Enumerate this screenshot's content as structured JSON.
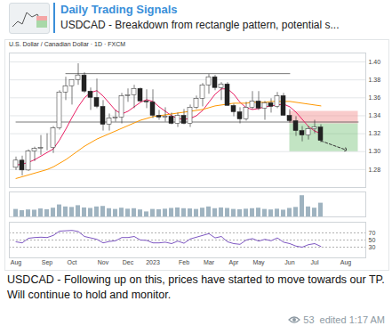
{
  "header": {
    "channel": "Daily Trading Signals",
    "preview": "USDCAD - Breakdown from rectangle pattern, potential s..."
  },
  "chart_data": [
    {
      "type": "candlestick",
      "title": "U.S. Dollar / Canadian Dollar · 1D · FXCM",
      "categories": [
        "Aug",
        null,
        null,
        null,
        null,
        "Sep",
        null,
        null,
        null,
        "Oct",
        null,
        null,
        null,
        null,
        "Nov",
        null,
        null,
        null,
        "Dec",
        null,
        null,
        null,
        "2023",
        null,
        null,
        null,
        null,
        "Feb",
        null,
        null,
        null,
        "Mar",
        null,
        null,
        null,
        "Apr",
        null,
        null,
        null,
        "May",
        null,
        null,
        null,
        null,
        "Jun",
        null,
        null,
        null,
        "Jul",
        null,
        null,
        null,
        null,
        "Aug",
        null,
        null
      ],
      "open": [
        1.282,
        1.29,
        1.279,
        1.3,
        1.303,
        1.304,
        1.304,
        1.326,
        1.366,
        1.373,
        1.38,
        1.385,
        1.367,
        1.36,
        1.35,
        1.33,
        1.337,
        1.338,
        1.362,
        1.363,
        1.37,
        1.356,
        1.355,
        1.34,
        1.338,
        1.339,
        1.331,
        1.34,
        1.331,
        1.349,
        1.359,
        1.374,
        1.383,
        1.371,
        1.375,
        1.351,
        1.344,
        1.336,
        1.349,
        1.356,
        1.348,
        1.354,
        1.35,
        1.362,
        1.34,
        1.334,
        1.323,
        1.318,
        1.325,
        1.327,
        null,
        null,
        null,
        null,
        null,
        null
      ],
      "high": [
        1.294,
        1.295,
        1.302,
        1.305,
        1.318,
        1.32,
        1.328,
        1.368,
        1.383,
        1.38,
        1.398,
        1.388,
        1.371,
        1.381,
        1.357,
        1.342,
        1.346,
        1.365,
        1.37,
        1.374,
        1.371,
        1.369,
        1.369,
        1.346,
        1.349,
        1.343,
        1.343,
        1.347,
        1.352,
        1.362,
        1.376,
        1.386,
        1.385,
        1.377,
        1.377,
        1.353,
        1.349,
        1.355,
        1.367,
        1.367,
        1.356,
        1.359,
        1.366,
        1.365,
        1.347,
        1.339,
        1.328,
        1.328,
        1.335,
        1.33,
        null,
        null,
        null,
        null,
        null,
        null
      ],
      "low": [
        1.279,
        1.273,
        1.278,
        1.289,
        1.296,
        1.301,
        1.298,
        1.324,
        1.357,
        1.352,
        1.374,
        1.365,
        1.346,
        1.348,
        1.323,
        1.323,
        1.333,
        1.331,
        1.355,
        1.348,
        1.355,
        1.348,
        1.337,
        1.335,
        1.333,
        1.33,
        1.327,
        1.33,
        1.327,
        1.347,
        1.35,
        1.364,
        1.368,
        1.357,
        1.351,
        1.339,
        1.331,
        1.334,
        1.347,
        1.346,
        1.335,
        1.343,
        1.348,
        1.34,
        1.332,
        1.317,
        1.311,
        1.313,
        1.32,
        1.31,
        null,
        null,
        null,
        null,
        null,
        null
      ],
      "close": [
        1.29,
        1.279,
        1.3,
        1.303,
        1.304,
        1.304,
        1.326,
        1.366,
        1.373,
        1.38,
        1.385,
        1.367,
        1.36,
        1.35,
        1.33,
        1.337,
        1.338,
        1.362,
        1.363,
        1.37,
        1.356,
        1.355,
        1.34,
        1.338,
        1.339,
        1.331,
        1.34,
        1.331,
        1.349,
        1.359,
        1.374,
        1.383,
        1.371,
        1.375,
        1.351,
        1.344,
        1.336,
        1.349,
        1.356,
        1.348,
        1.354,
        1.35,
        1.362,
        1.34,
        1.334,
        1.323,
        1.318,
        1.325,
        1.327,
        1.312,
        null,
        null,
        null,
        null,
        null,
        null
      ],
      "moving_averages": [
        {
          "color": "#e91e63",
          "values": [
            1.285,
            1.286,
            1.288,
            1.291,
            1.295,
            1.299,
            1.303,
            1.313,
            1.325,
            1.338,
            1.35,
            1.36,
            1.366,
            1.368,
            1.362,
            1.354,
            1.346,
            1.342,
            1.345,
            1.35,
            1.355,
            1.358,
            1.356,
            1.35,
            1.345,
            1.34,
            1.337,
            1.336,
            1.337,
            1.34,
            1.346,
            1.355,
            1.364,
            1.37,
            1.37,
            1.364,
            1.355,
            1.349,
            1.347,
            1.348,
            1.35,
            1.351,
            1.352,
            1.353,
            1.35,
            1.344,
            1.336,
            1.328,
            1.323,
            1.32,
            null,
            null,
            null,
            null,
            null,
            null
          ]
        },
        {
          "color": "#ff9800",
          "values": [
            1.27,
            1.272,
            1.274,
            1.276,
            1.278,
            1.28,
            1.283,
            1.287,
            1.291,
            1.296,
            1.301,
            1.306,
            1.31,
            1.314,
            1.317,
            1.32,
            1.323,
            1.326,
            1.329,
            1.332,
            1.335,
            1.337,
            1.339,
            1.34,
            1.341,
            1.342,
            1.343,
            1.344,
            1.345,
            1.346,
            1.347,
            1.349,
            1.351,
            1.352,
            1.353,
            1.354,
            1.354,
            1.354,
            1.355,
            1.355,
            1.355,
            1.356,
            1.356,
            1.356,
            1.356,
            1.355,
            1.354,
            1.353,
            1.352,
            1.351,
            null,
            null,
            null,
            null,
            null,
            null
          ]
        }
      ],
      "levels": [
        {
          "value": 1.387,
          "span": [
            8,
            44
          ]
        },
        {
          "value": 1.333,
          "span": [
            0,
            55
          ]
        }
      ],
      "trade": {
        "entry": 1.331,
        "stop": 1.345,
        "target": 1.3,
        "span": [
          44,
          55
        ]
      },
      "projection": {
        "x": [
          49,
          53
        ],
        "y": [
          1.312,
          1.302
        ]
      },
      "ylim": [
        1.26,
        1.41
      ],
      "yticks": [
        1.28,
        {
          "value": 1.3,
          "label": "1.30"
        },
        1.32,
        1.34,
        1.36,
        1.38,
        {
          "value": 1.4,
          "label": "1.40"
        }
      ],
      "grid": true,
      "tick_labels": "y"
    },
    {
      "type": "bar",
      "categories": [
        "Aug",
        null,
        null,
        null,
        null,
        "Sep",
        null,
        null,
        null,
        "Oct",
        null,
        null,
        null,
        null,
        "Nov",
        null,
        null,
        null,
        "Dec",
        null,
        null,
        null,
        "2023",
        null,
        null,
        null,
        null,
        "Feb",
        null,
        null,
        null,
        "Mar",
        null,
        null,
        null,
        "Apr",
        null,
        null,
        null,
        "May",
        null,
        null,
        null,
        null,
        "Jun",
        null,
        null,
        null,
        "Jul",
        null,
        null,
        null,
        null,
        "Aug",
        null,
        null
      ],
      "values": [
        30,
        25,
        28,
        27,
        32,
        29,
        35,
        48,
        40,
        38,
        45,
        36,
        34,
        40,
        42,
        33,
        30,
        35,
        31,
        33,
        28,
        20,
        30,
        29,
        31,
        34,
        36,
        33,
        32,
        30,
        35,
        40,
        33,
        36,
        34,
        30,
        29,
        31,
        33,
        35,
        30,
        28,
        31,
        27,
        34,
        38,
        85,
        40,
        35,
        55,
        null,
        null,
        null,
        null,
        null,
        null
      ],
      "color": "#9fb3c0",
      "ylim": [
        0,
        100
      ],
      "tick_labels": false
    },
    {
      "type": "line",
      "categories": [
        "Aug",
        null,
        null,
        null,
        null,
        "Sep",
        null,
        null,
        null,
        "Oct",
        null,
        null,
        null,
        null,
        "Nov",
        null,
        null,
        null,
        "Dec",
        null,
        null,
        null,
        "2023",
        null,
        null,
        null,
        null,
        "Feb",
        null,
        null,
        null,
        "Mar",
        null,
        null,
        null,
        "Apr",
        null,
        null,
        null,
        "May",
        null,
        null,
        null,
        null,
        "Jun",
        null,
        null,
        null,
        "Jul",
        null,
        null,
        null,
        null,
        "Aug",
        null,
        null
      ],
      "values": [
        45,
        42,
        55,
        57,
        58,
        57,
        63,
        75,
        76,
        77,
        74,
        60,
        56,
        52,
        42,
        46,
        48,
        57,
        57,
        60,
        50,
        49,
        42,
        42,
        44,
        40,
        47,
        41,
        53,
        58,
        63,
        68,
        56,
        60,
        45,
        40,
        38,
        50,
        54,
        47,
        52,
        48,
        56,
        44,
        40,
        33,
        30,
        37,
        40,
        32,
        null,
        null,
        null,
        null,
        null,
        null
      ],
      "color": "#7e57c2",
      "ylim": [
        0,
        100
      ],
      "yticks": [
        30,
        50,
        70
      ],
      "grid": true,
      "tick_labels": true
    }
  ],
  "caption": "USDCAD - Following up on this, prices have started to move towards our TP. Will continue to hold and monitor.",
  "footer": {
    "views": 53,
    "edited": "edited 1:17 AM"
  }
}
